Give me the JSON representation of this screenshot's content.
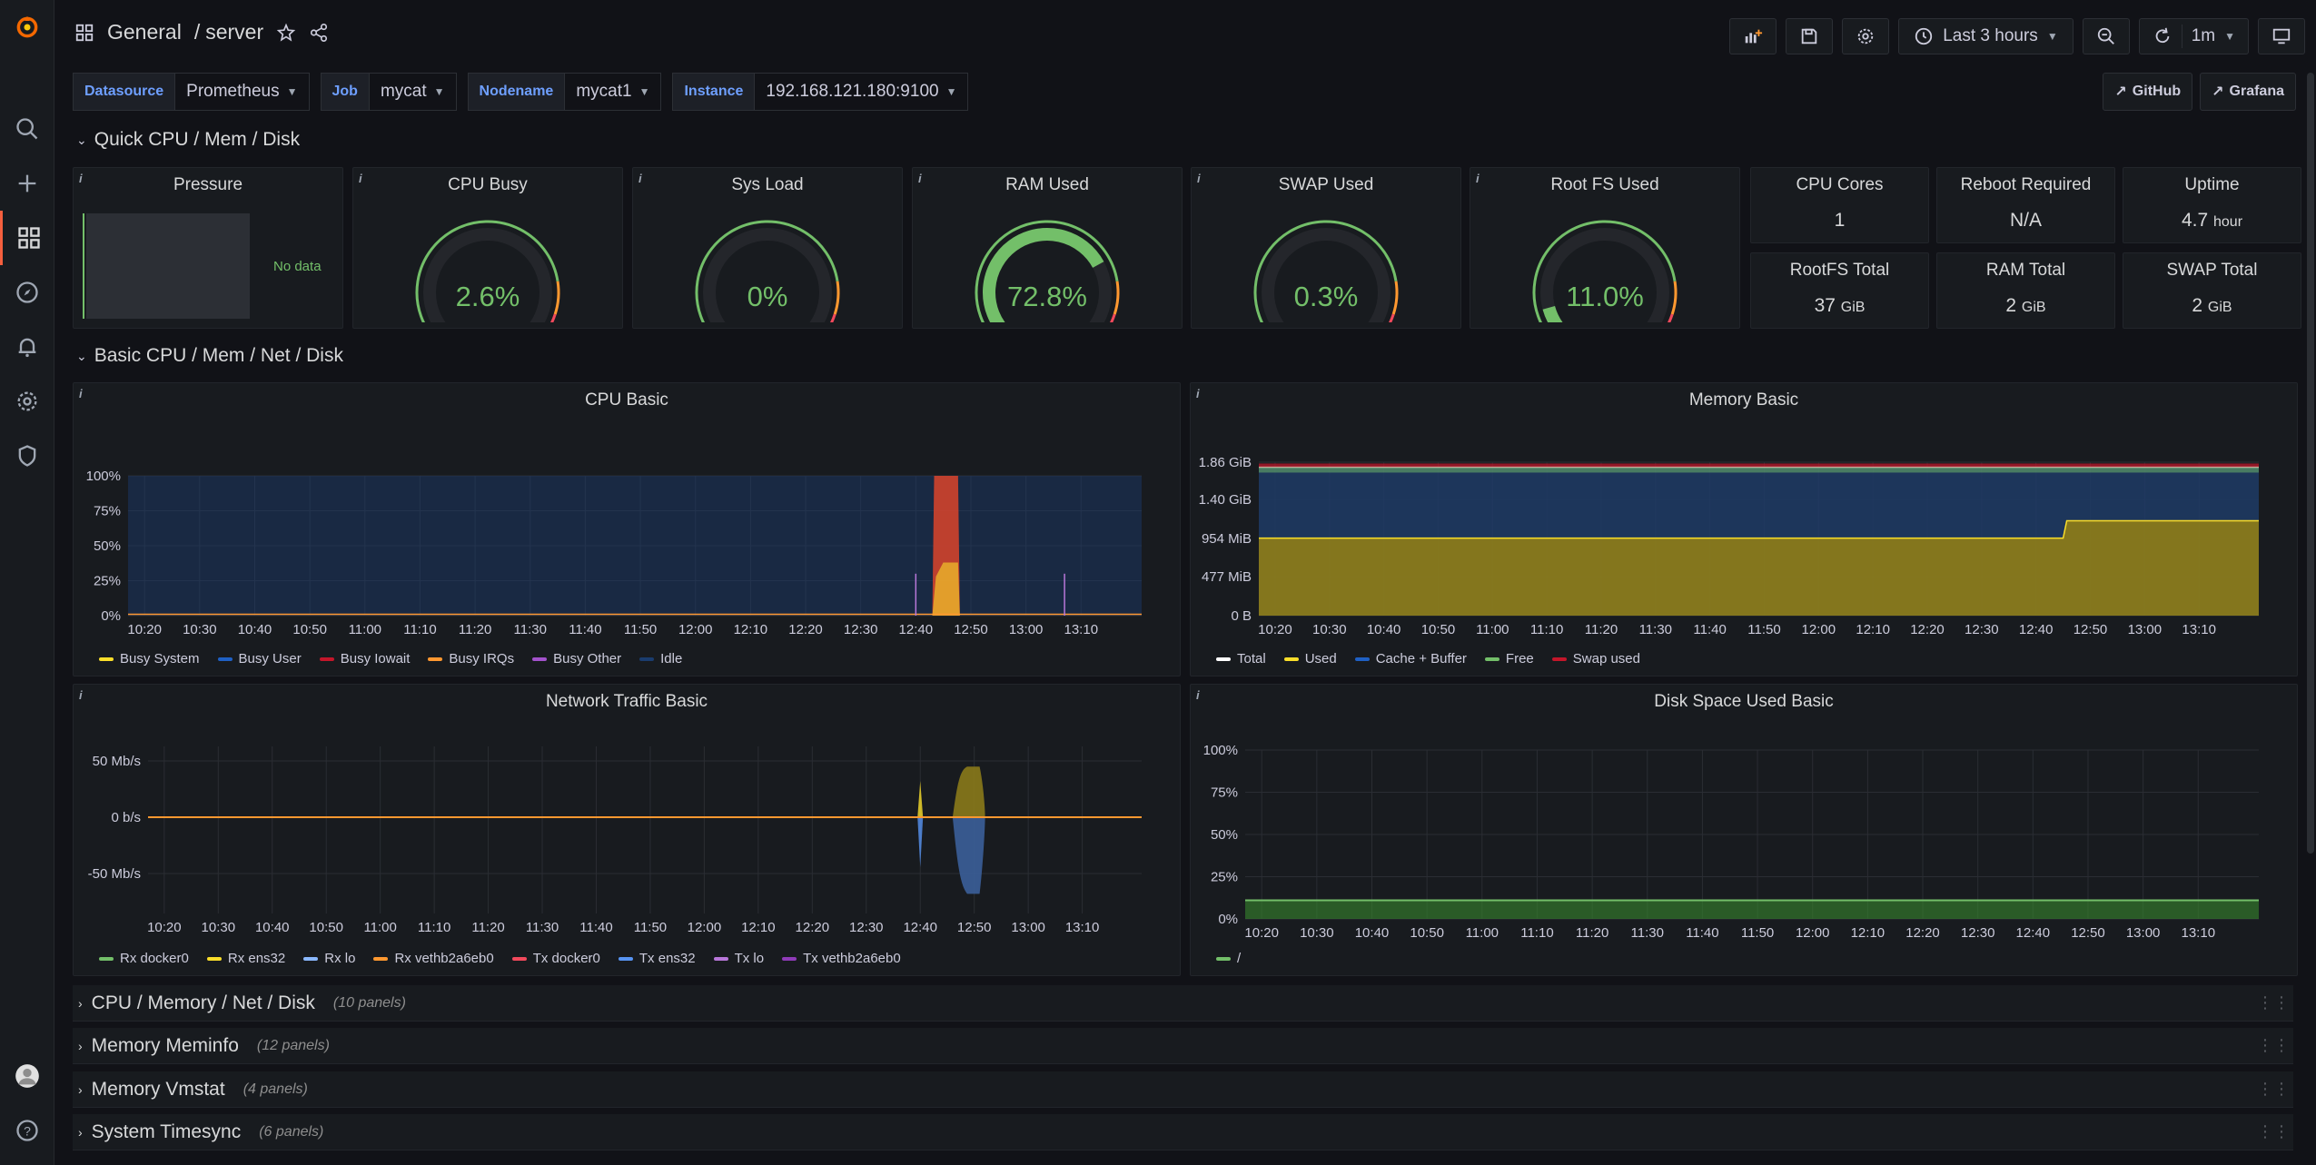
{
  "header": {
    "folder": "General",
    "separator": "/",
    "title": "server",
    "time_range": "Last 3 hours",
    "refresh": "1m"
  },
  "variables": [
    {
      "label": "Datasource",
      "value": "Prometheus"
    },
    {
      "label": "Job",
      "value": "mycat"
    },
    {
      "label": "Nodename",
      "value": "mycat1"
    },
    {
      "label": "Instance",
      "value": "192.168.121.180:9100"
    }
  ],
  "links": {
    "github": "GitHub",
    "grafana": "Grafana"
  },
  "rows": {
    "quick": "Quick CPU / Mem / Disk",
    "basic": "Basic CPU / Mem / Net / Disk",
    "collapsed": [
      {
        "title": "CPU / Memory / Net / Disk",
        "count": "(10 panels)"
      },
      {
        "title": "Memory Meminfo",
        "count": "(12 panels)"
      },
      {
        "title": "Memory Vmstat",
        "count": "(4 panels)"
      },
      {
        "title": "System Timesync",
        "count": "(6 panels)"
      }
    ]
  },
  "quick_panels": {
    "pressure": {
      "title": "Pressure",
      "nodata": "No data"
    },
    "gauges": [
      {
        "title": "CPU Busy",
        "value": "2.6%",
        "fraction": 0.026
      },
      {
        "title": "Sys Load",
        "value": "0%",
        "fraction": 0.0
      },
      {
        "title": "RAM Used",
        "value": "72.8%",
        "fraction": 0.728
      },
      {
        "title": "SWAP Used",
        "value": "0.3%",
        "fraction": 0.003
      },
      {
        "title": "Root FS Used",
        "value": "11.0%",
        "fraction": 0.11
      }
    ],
    "stats": [
      {
        "title": "CPU Cores",
        "value": "1",
        "unit": ""
      },
      {
        "title": "Reboot Required",
        "value": "N/A",
        "unit": ""
      },
      {
        "title": "Uptime",
        "value": "4.7",
        "unit": "hour"
      },
      {
        "title": "RootFS Total",
        "value": "37",
        "unit": "GiB"
      },
      {
        "title": "RAM Total",
        "value": "2",
        "unit": "GiB"
      },
      {
        "title": "SWAP Total",
        "value": "2",
        "unit": "GiB"
      }
    ]
  },
  "colors": {
    "green": "#73bf69",
    "yellow": "#fade2a",
    "red": "#f2495c",
    "orange": "#ff9830",
    "blue": "#5794f2",
    "purple": "#b877d9",
    "darkred": "#c4162a",
    "darkblue": "#1f60c4"
  },
  "chart_data": [
    {
      "title": "CPU Basic",
      "type": "area",
      "x": [
        "10:20",
        "10:30",
        "10:40",
        "10:50",
        "11:00",
        "11:10",
        "11:20",
        "11:30",
        "11:40",
        "11:50",
        "12:00",
        "12:10",
        "12:20",
        "12:30",
        "12:40",
        "12:50",
        "13:00",
        "13:10"
      ],
      "yticks": [
        "0%",
        "25%",
        "50%",
        "75%",
        "100%"
      ],
      "ylim": [
        0,
        100
      ],
      "series": [
        {
          "name": "Busy System",
          "color": "#fade2a"
        },
        {
          "name": "Busy User",
          "color": "#1f60c4"
        },
        {
          "name": "Busy Iowait",
          "color": "#c4162a"
        },
        {
          "name": "Busy IRQs",
          "color": "#ff9830"
        },
        {
          "name": "Busy Other",
          "color": "#a352cc"
        },
        {
          "name": "Idle",
          "color": "#1a3c6e"
        }
      ],
      "spike": {
        "start": "12:43",
        "end": "12:48",
        "iowait_peak": 100,
        "system_peak": 38
      }
    },
    {
      "title": "Memory Basic",
      "type": "area",
      "x": [
        "10:20",
        "10:30",
        "10:40",
        "10:50",
        "11:00",
        "11:10",
        "11:20",
        "11:30",
        "11:40",
        "11:50",
        "12:00",
        "12:10",
        "12:20",
        "12:30",
        "12:40",
        "12:50",
        "13:00",
        "13:10"
      ],
      "yticks": [
        "0 B",
        "477 MiB",
        "954 MiB",
        "1.40 GiB",
        "1.86 GiB"
      ],
      "ylim": [
        0,
        1.86
      ],
      "series": [
        {
          "name": "Total",
          "color": "#ffffff",
          "value": 1.8
        },
        {
          "name": "Used",
          "color": "#fade2a",
          "value_before": 0.94,
          "value_after": 1.15
        },
        {
          "name": "Cache + Buffer",
          "color": "#1f60c4"
        },
        {
          "name": "Free",
          "color": "#73bf69"
        },
        {
          "name": "Swap used",
          "color": "#c4162a"
        }
      ]
    },
    {
      "title": "Network Traffic Basic",
      "type": "area",
      "x": [
        "10:20",
        "10:30",
        "10:40",
        "10:50",
        "11:00",
        "11:10",
        "11:20",
        "11:30",
        "11:40",
        "11:50",
        "12:00",
        "12:10",
        "12:20",
        "12:30",
        "12:40",
        "12:50",
        "13:00",
        "13:10"
      ],
      "yticks": [
        "50 Mb/s",
        "0 b/s",
        "-50 Mb/s"
      ],
      "ylim": [
        -70,
        70
      ],
      "series": [
        {
          "name": "Rx docker0",
          "color": "#73bf69"
        },
        {
          "name": "Rx ens32",
          "color": "#fade2a"
        },
        {
          "name": "Rx lo",
          "color": "#8ab8ff"
        },
        {
          "name": "Rx vethb2a6eb0",
          "color": "#ff9830"
        },
        {
          "name": "Tx docker0",
          "color": "#f2495c"
        },
        {
          "name": "Tx ens32",
          "color": "#5794f2"
        },
        {
          "name": "Tx lo",
          "color": "#b877d9"
        },
        {
          "name": "Tx vethb2a6eb0",
          "color": "#8f3bb8"
        }
      ],
      "peak": {
        "rx": 45,
        "tx": -70
      }
    },
    {
      "title": "Disk Space Used Basic",
      "type": "area",
      "x": [
        "10:20",
        "10:30",
        "10:40",
        "10:50",
        "11:00",
        "11:10",
        "11:20",
        "11:30",
        "11:40",
        "11:50",
        "12:00",
        "12:10",
        "12:20",
        "12:30",
        "12:40",
        "12:50",
        "13:00",
        "13:10"
      ],
      "yticks": [
        "0%",
        "25%",
        "50%",
        "75%",
        "100%"
      ],
      "ylim": [
        0,
        100
      ],
      "series": [
        {
          "name": "/",
          "color": "#73bf69",
          "value": 11
        }
      ]
    }
  ]
}
